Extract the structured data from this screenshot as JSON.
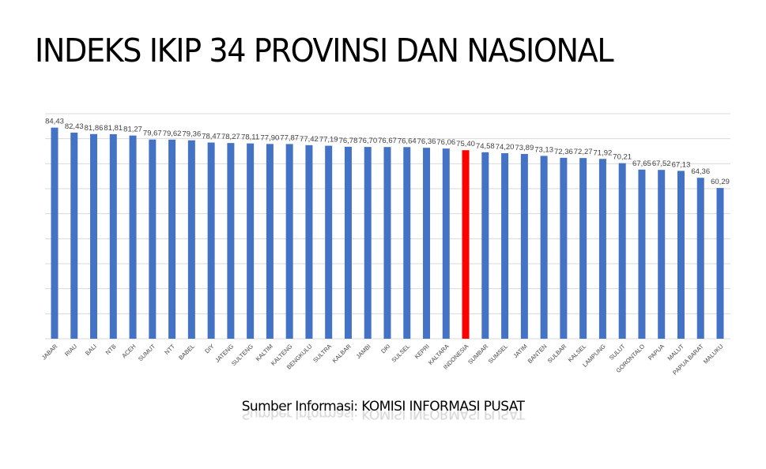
{
  "title": "INDEKS IKIP 34 PROVINSI DAN NASIONAL",
  "source": "Sumber Informasi: KOMISI INFORMASI PUSAT",
  "colors": {
    "bar": "#4472C4",
    "highlight": "#FF0000",
    "grid": "#D9D9D9",
    "label": "#404040"
  },
  "chart_data": {
    "type": "bar",
    "title": "INDEKS IKIP 34 PROVINSI DAN NASIONAL",
    "xlabel": "",
    "ylabel": "",
    "ylim": [
      0,
      90
    ],
    "grid": true,
    "y_axis_visible": false,
    "legend": "none",
    "highlight_category": "INDONESIA",
    "categories": [
      "JABAR",
      "RIAU",
      "BALI",
      "NTB",
      "ACEH",
      "SUMUT",
      "NTT",
      "BABEL",
      "DIY",
      "JATENG",
      "SULTENG",
      "KALTIM",
      "KALTENG",
      "BENGKULU",
      "SULTRA",
      "KALBAR",
      "JAMBI",
      "DKI",
      "SULSEL",
      "KEPRI",
      "KALTARA",
      "INDONESIA",
      "SUMBAR",
      "SUMSEL",
      "JATIM",
      "BANTEN",
      "SULBAR",
      "KALSEL",
      "LAMPUNG",
      "SULUT",
      "GORONTALO",
      "PAPUA",
      "MALUT",
      "PAPUA BARAT",
      "MALUKU"
    ],
    "values": [
      84.43,
      82.43,
      81.86,
      81.81,
      81.27,
      79.67,
      79.62,
      79.36,
      78.47,
      78.27,
      78.11,
      77.9,
      77.87,
      77.42,
      77.19,
      76.78,
      76.7,
      76.67,
      76.64,
      76.36,
      76.06,
      75.4,
      74.58,
      74.2,
      73.89,
      73.13,
      72.36,
      72.27,
      71.92,
      70.21,
      67.65,
      67.52,
      67.13,
      64.36,
      60.29
    ],
    "value_labels": [
      "84,43",
      "82,43",
      "81,86",
      "81,81",
      "81,27",
      "79,67",
      "79,62",
      "79,36",
      "78,47",
      "78,27",
      "78,11",
      "77,90",
      "77,87",
      "77,42",
      "77,19",
      "76,78",
      "76,70",
      "76,67",
      "76,64",
      "76,36",
      "76,06",
      "75,40",
      "74,58",
      "74,20",
      "73,89",
      "73,13",
      "72,36",
      "72,27",
      "71,92",
      "70,21",
      "67,65",
      "67,52",
      "67,13",
      "64,36",
      "60,29"
    ],
    "source": "Sumber Informasi: KOMISI INFORMASI PUSAT"
  }
}
